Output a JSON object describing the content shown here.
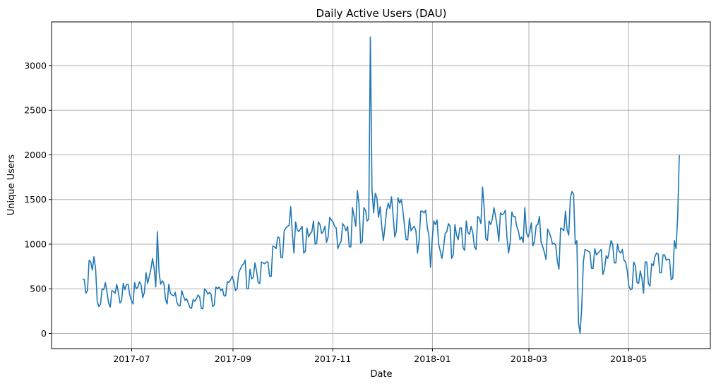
{
  "chart_data": {
    "type": "line",
    "title": "Daily Active Users (DAU)",
    "xlabel": "Date",
    "ylabel": "Unique Users",
    "grid": true,
    "x_start": "2017-06-01",
    "x_end": "2018-06-01",
    "xlim": [
      "2017-05-13",
      "2018-06-20"
    ],
    "ylim": [
      -170,
      3490
    ],
    "x_ticks": [
      {
        "date": "2017-07-01",
        "label": "2017-07"
      },
      {
        "date": "2017-09-01",
        "label": "2017-09"
      },
      {
        "date": "2017-11-01",
        "label": "2017-11"
      },
      {
        "date": "2018-01-01",
        "label": "2018-01"
      },
      {
        "date": "2018-03-01",
        "label": "2018-03"
      },
      {
        "date": "2018-05-01",
        "label": "2018-05"
      }
    ],
    "y_ticks": [
      0,
      500,
      1000,
      1500,
      2000,
      2500,
      3000
    ],
    "series": [
      {
        "color": "#1f77b4",
        "values": [
          610,
          605,
          450,
          480,
          820,
          800,
          710,
          860,
          720,
          360,
          300,
          330,
          500,
          490,
          570,
          460,
          340,
          295,
          480,
          470,
          450,
          550,
          460,
          340,
          370,
          560,
          490,
          550,
          550,
          430,
          370,
          330,
          570,
          500,
          520,
          580,
          540,
          400,
          460,
          680,
          560,
          640,
          720,
          840,
          730,
          520,
          1140,
          690,
          550,
          590,
          560,
          380,
          330,
          550,
          450,
          430,
          420,
          460,
          350,
          310,
          310,
          480,
          420,
          370,
          390,
          340,
          290,
          280,
          380,
          360,
          390,
          430,
          410,
          280,
          275,
          500,
          480,
          440,
          460,
          440,
          300,
          320,
          520,
          500,
          520,
          480,
          500,
          420,
          420,
          580,
          570,
          600,
          640,
          580,
          480,
          500,
          680,
          720,
          760,
          780,
          820,
          500,
          500,
          720,
          610,
          630,
          790,
          700,
          570,
          560,
          800,
          790,
          780,
          800,
          800,
          640,
          640,
          980,
          970,
          950,
          1080,
          1070,
          850,
          850,
          1150,
          1180,
          1200,
          1210,
          1420,
          1120,
          900,
          1250,
          1160,
          1140,
          1170,
          1200,
          900,
          920,
          1180,
          1080,
          1120,
          1140,
          1260,
          1000,
          1010,
          1250,
          1220,
          1120,
          1140,
          1200,
          1020,
          1080,
          1300,
          1270,
          1250,
          1200,
          1180,
          950,
          1000,
          1030,
          1230,
          1200,
          1150,
          1200,
          970,
          970,
          1410,
          1310,
          1200,
          1600,
          1450,
          1010,
          1030,
          1410,
          1380,
          1260,
          1280,
          3320,
          1600,
          1350,
          1570,
          1520,
          1300,
          1420,
          1200,
          1040,
          1200,
          1380,
          1460,
          1400,
          1530,
          1320,
          1080,
          1150,
          1520,
          1460,
          1500,
          1380,
          1200,
          1050,
          1050,
          1290,
          1150,
          1180,
          1200,
          1150,
          900,
          1050,
          1370,
          1370,
          1350,
          1380,
          1190,
          1100,
          740,
          1050,
          1260,
          1220,
          1270,
          1000,
          920,
          840,
          960,
          1120,
          1140,
          1230,
          1200,
          840,
          880,
          1220,
          1100,
          1050,
          1180,
          1180,
          960,
          930,
          1260,
          1130,
          1110,
          1200,
          1130,
          970,
          940,
          1310,
          1290,
          1230,
          1640,
          1400,
          1060,
          1040,
          1260,
          1220,
          1280,
          1410,
          1310,
          1200,
          1030,
          1350,
          1330,
          1340,
          1380,
          1080,
          900,
          1020,
          1360,
          1310,
          1310,
          1200,
          1150,
          1050,
          1080,
          1020,
          1410,
          1130,
          1080,
          1140,
          1240,
          980,
          1040,
          1210,
          1220,
          1310,
          1020,
          970,
          910,
          830,
          1170,
          1130,
          1080,
          1000,
          1010,
          990,
          810,
          720,
          1180,
          1170,
          1150,
          1370,
          1160,
          1100,
          1520,
          1590,
          1560,
          1000,
          1040,
          120,
          0,
          300,
          800,
          940,
          930,
          920,
          910,
          730,
          730,
          950,
          880,
          900,
          920,
          940,
          660,
          720,
          870,
          840,
          930,
          1040,
          1000,
          790,
          790,
          1000,
          920,
          900,
          940,
          820,
          800,
          700,
          530,
          490,
          500,
          800,
          760,
          570,
          560,
          700,
          620,
          450,
          800,
          800,
          560,
          530,
          780,
          760,
          860,
          900,
          890,
          680,
          680,
          880,
          880,
          820,
          830,
          830,
          600,
          620,
          1040,
          950,
          1300,
          2000
        ]
      }
    ]
  }
}
